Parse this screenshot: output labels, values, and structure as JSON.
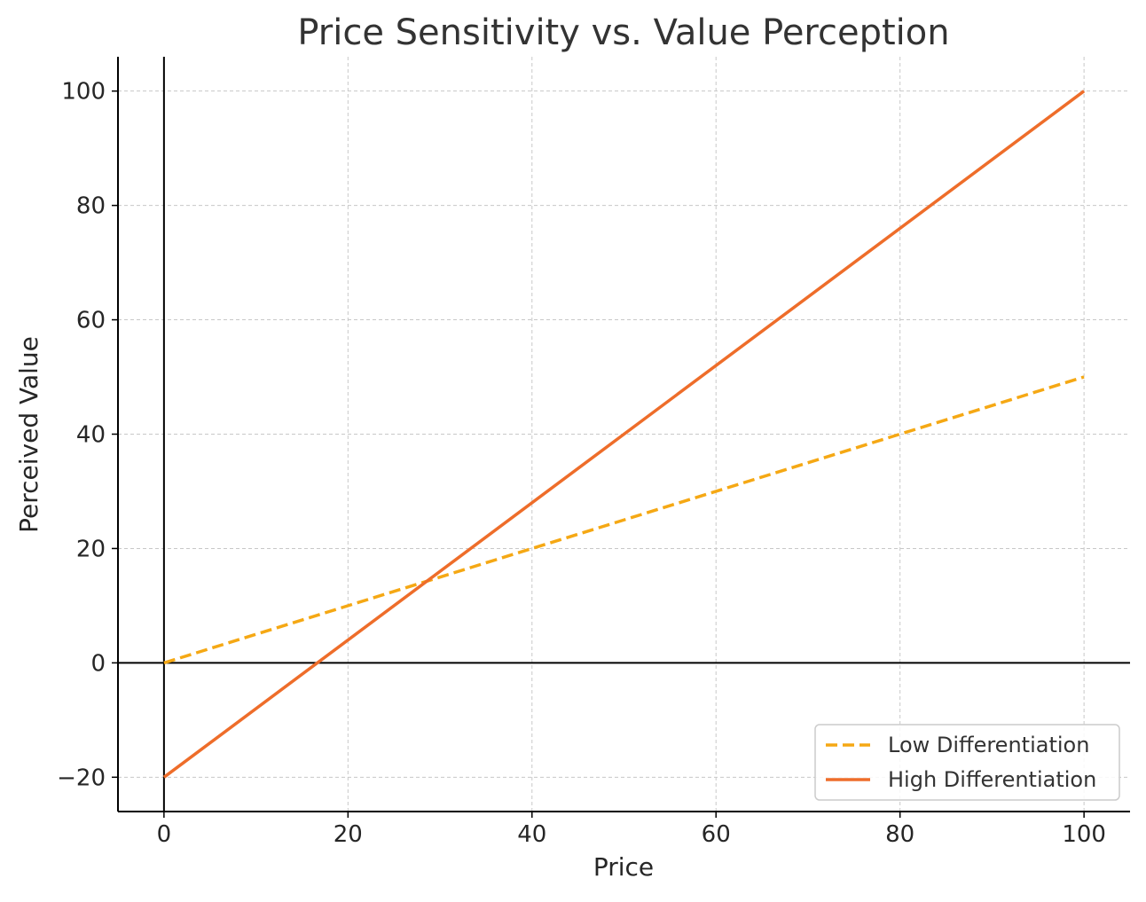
{
  "chart_data": {
    "type": "line",
    "title": "Price Sensitivity vs. Value Perception",
    "xlabel": "Price",
    "ylabel": "Perceived Value",
    "xlim": [
      -5,
      105
    ],
    "ylim": [
      -26,
      106
    ],
    "xticks": [
      0,
      20,
      40,
      60,
      80,
      100
    ],
    "yticks": [
      -20,
      0,
      20,
      40,
      60,
      80,
      100
    ],
    "xtick_labels": [
      "0",
      "20",
      "40",
      "60",
      "80",
      "100"
    ],
    "ytick_labels": [
      "−20",
      "0",
      "20",
      "40",
      "60",
      "80",
      "100"
    ],
    "grid": true,
    "reference_lines": {
      "x": 0,
      "y": 0,
      "color": "#000000"
    },
    "legend_position": "lower-right",
    "series": [
      {
        "name": "Low Differentiation",
        "x": [
          0,
          100
        ],
        "y": [
          0,
          50
        ],
        "color": "#f5a814",
        "line_style": "dashed"
      },
      {
        "name": "High Differentiation",
        "x": [
          0,
          100
        ],
        "y": [
          -20,
          100
        ],
        "color": "#ee6d2a",
        "line_style": "solid"
      }
    ]
  }
}
